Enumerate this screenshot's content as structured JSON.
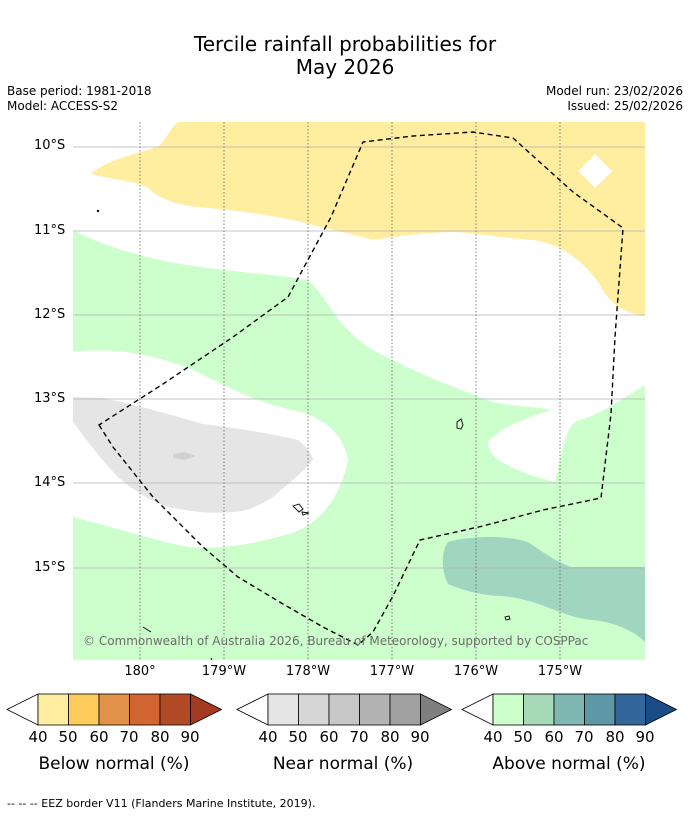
{
  "title": {
    "line1": "Tercile rainfall probabilities for",
    "line2": "May 2026"
  },
  "meta": {
    "base_period": "Base period: 1981-2018",
    "model": "Model: ACCESS-S2",
    "model_run": "Model run: 23/02/2026",
    "issued": "Issued: 25/02/2026"
  },
  "axes": {
    "lat_labels": [
      "10°S",
      "11°S",
      "12°S",
      "13°S",
      "14°S",
      "15°S"
    ],
    "lon_labels": [
      "180°",
      "179°W",
      "178°W",
      "177°W",
      "176°W",
      "175°W"
    ]
  },
  "copyright": "© Commonwealth of Australia 2026, Bureau of Meteorology, supported by COSPPac",
  "legends": {
    "below": {
      "title": "Below normal (%)",
      "ticks": [
        "40",
        "50",
        "60",
        "70",
        "80",
        "90"
      ],
      "colors": [
        "#ffeda0",
        "#fecc5c",
        "#e3924a",
        "#d26632",
        "#b04b26",
        "#a33a22"
      ]
    },
    "near": {
      "title": "Near normal (%)",
      "ticks": [
        "40",
        "50",
        "60",
        "70",
        "80",
        "90"
      ],
      "colors": [
        "#e5e5e5",
        "#d6d6d6",
        "#c7c7c7",
        "#b3b3b3",
        "#a0a0a0",
        "#7f7f7f"
      ]
    },
    "above": {
      "title": "Above normal (%)",
      "ticks": [
        "40",
        "50",
        "60",
        "70",
        "80",
        "90"
      ],
      "colors": [
        "#ccffcc",
        "#a7d9b8",
        "#7fb7b2",
        "#5e97a6",
        "#33669a",
        "#1a4c88"
      ]
    }
  },
  "footer": {
    "eez_note": "--  --  -- EEZ border V11 (Flanders Marine Institute, 2019)."
  }
}
